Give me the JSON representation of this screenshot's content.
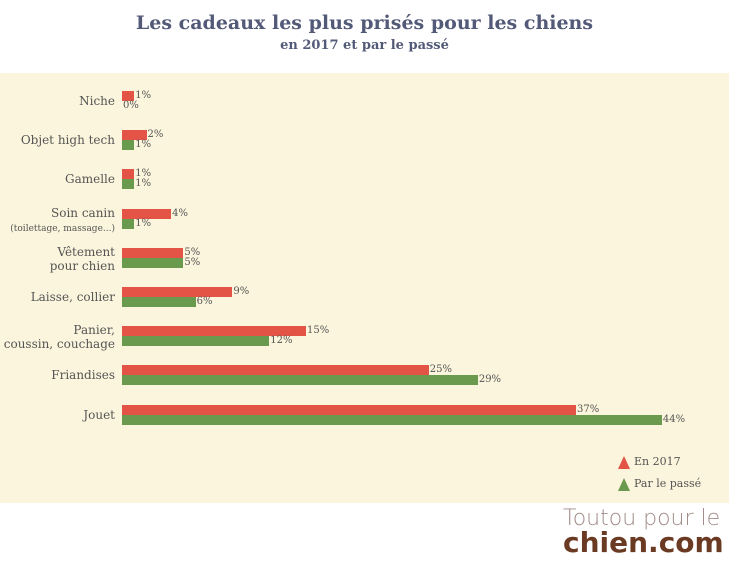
{
  "chart_data": {
    "type": "bar",
    "orientation": "horizontal",
    "title": "Les cadeaux les plus prisés pour les chiens",
    "subtitle": "en 2017 et par le passé",
    "categories": [
      "Niche",
      "Objet high tech",
      "Gamelle",
      "Soin canin",
      "Vêtement pour chien",
      "Laisse, collier",
      "Panier, coussin, couchage",
      "Friandises",
      "Jouet"
    ],
    "category_sublabels": {
      "Soin canin": "(toilettage, massage...)"
    },
    "series": [
      {
        "name": "En 2017",
        "color": "#e45446",
        "values": [
          1,
          2,
          1,
          4,
          5,
          9,
          15,
          25,
          37
        ]
      },
      {
        "name": "Par le passé",
        "color": "#6a9a4e",
        "values": [
          0,
          1,
          1,
          1,
          5,
          6,
          12,
          29,
          44
        ]
      }
    ],
    "unit": "%",
    "legend": "bottom-right",
    "grid": false
  },
  "logo": {
    "line1": "Toutou pour le",
    "line2": "chien.com"
  }
}
